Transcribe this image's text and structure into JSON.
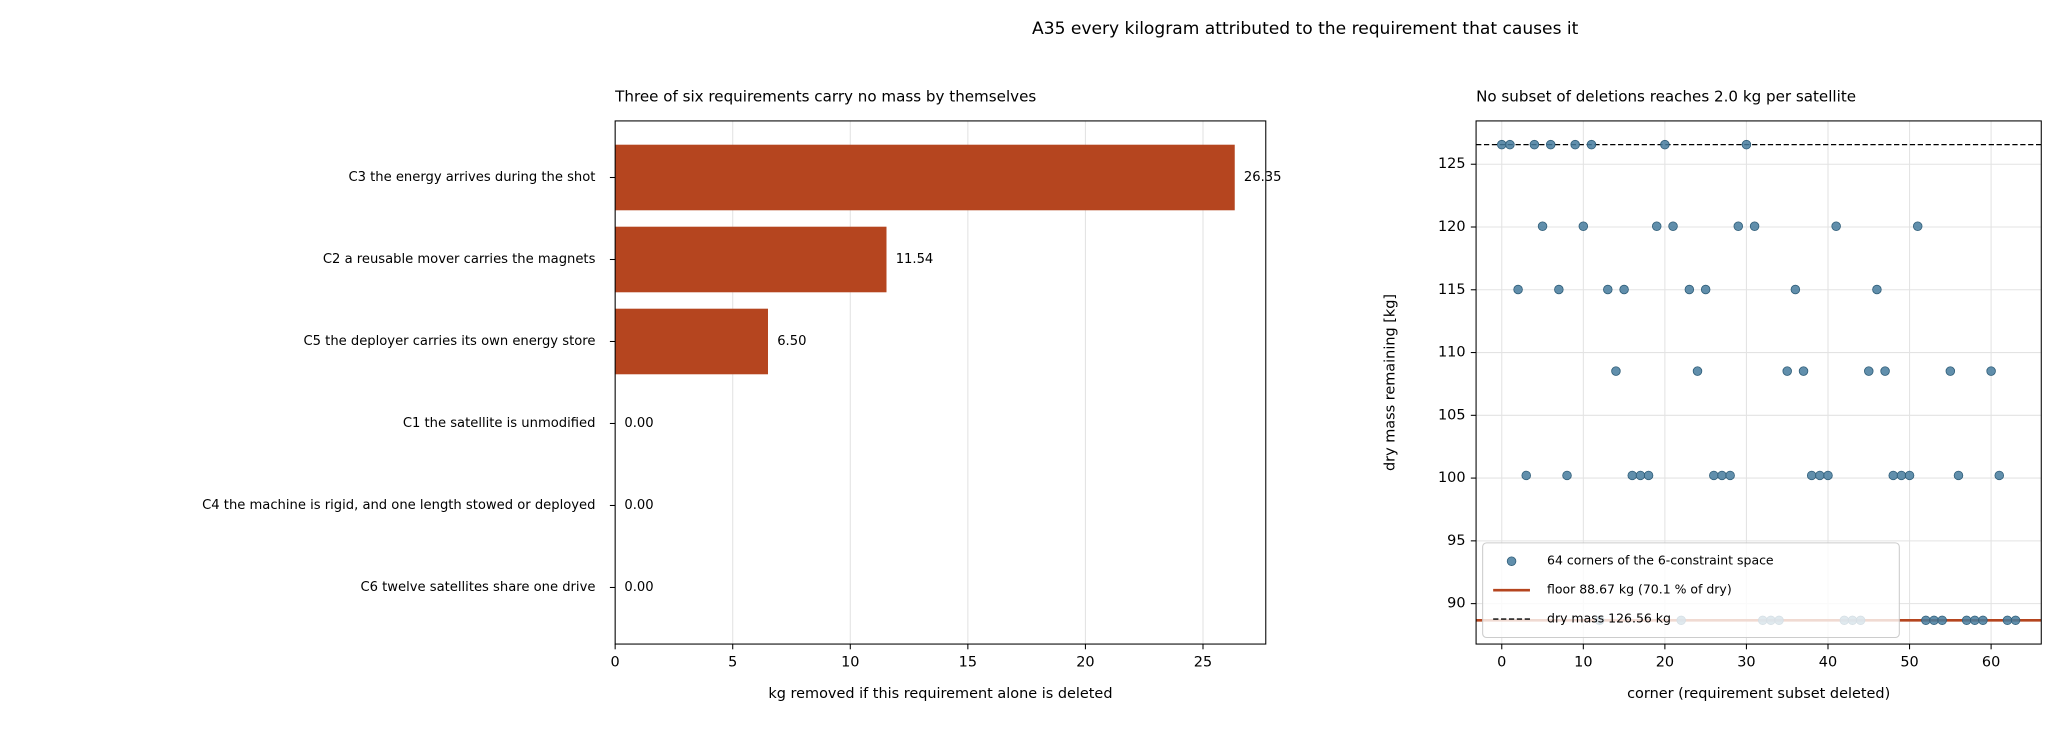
{
  "title": "A35  every kilogram attributed to the requirement that causes it",
  "chart_data": [
    {
      "type": "barh",
      "title": "Three of six requirements carry no mass by themselves",
      "categories": [
        "C3  the energy arrives during the shot",
        "C2  a reusable mover carries the magnets",
        "C5  the deployer carries its own energy store",
        "C1  the satellite is unmodified",
        "C4  the machine is rigid, and one length stowed or deployed",
        "C6  twelve satellites share one drive"
      ],
      "values": [
        26.35,
        11.54,
        6.5,
        0,
        0,
        0
      ],
      "value_labels": [
        "26.35",
        "11.54",
        "6.50",
        "0.00",
        "0.00",
        "0.00"
      ],
      "color": "#b5451f",
      "xlabel": "kg removed if this requirement alone is deleted",
      "xlim": [
        0,
        27.67
      ],
      "xticks": [
        0,
        5,
        10,
        15,
        20,
        25
      ],
      "grid": true
    },
    {
      "type": "scatter",
      "title": "No subset of deletions reaches 2.0 kg per satellite",
      "x": [
        0,
        1,
        2,
        3,
        4,
        5,
        6,
        7,
        8,
        9,
        10,
        11,
        12,
        13,
        14,
        15,
        16,
        17,
        18,
        19,
        20,
        21,
        22,
        23,
        24,
        25,
        26,
        27,
        28,
        29,
        30,
        31,
        32,
        33,
        34,
        35,
        36,
        37,
        38,
        39,
        40,
        41,
        42,
        43,
        44,
        45,
        46,
        47,
        48,
        49,
        50,
        51,
        52,
        53,
        54,
        55,
        56,
        57,
        58,
        59,
        60,
        61,
        62,
        63
      ],
      "series": [
        {
          "name": "64 corners of the 6-constraint space",
          "color": "#457b9d",
          "values": [
            126.56,
            126.56,
            115.02,
            100.21,
            126.56,
            120.06,
            126.56,
            115.02,
            100.21,
            126.56,
            120.06,
            126.56,
            88.67,
            115.02,
            108.52,
            115.02,
            100.21,
            100.21,
            100.21,
            120.06,
            126.56,
            120.06,
            88.67,
            115.02,
            108.52,
            115.02,
            100.21,
            100.21,
            100.21,
            120.06,
            126.56,
            120.06,
            88.67,
            88.67,
            88.67,
            108.52,
            115.02,
            108.52,
            100.21,
            100.21,
            100.21,
            120.06,
            88.67,
            88.67,
            88.67,
            108.52,
            115.02,
            108.52,
            100.21,
            100.21,
            100.21,
            120.06,
            88.67,
            88.67,
            88.67,
            108.52,
            100.21,
            88.67,
            88.67,
            88.67,
            108.52,
            100.21,
            88.67,
            88.67
          ]
        }
      ],
      "lines": [
        {
          "name": "floor 88.67 kg  (70.1 % of dry)",
          "value": 88.67,
          "color": "#b5451f",
          "style": "solid"
        },
        {
          "name": "dry mass 126.56 kg",
          "value": 126.56,
          "color": "#000000",
          "style": "dashed"
        }
      ],
      "xlabel": "corner (requirement subset deleted)",
      "ylabel": "dry mass remaining  [kg]",
      "xlim": [
        -3.15,
        66.15
      ],
      "ylim": [
        86.78,
        128.45
      ],
      "xticks": [
        0,
        10,
        20,
        30,
        40,
        50,
        60
      ],
      "yticks": [
        90,
        95,
        100,
        105,
        110,
        115,
        120,
        125
      ],
      "grid": true,
      "legend": "lower left"
    }
  ]
}
